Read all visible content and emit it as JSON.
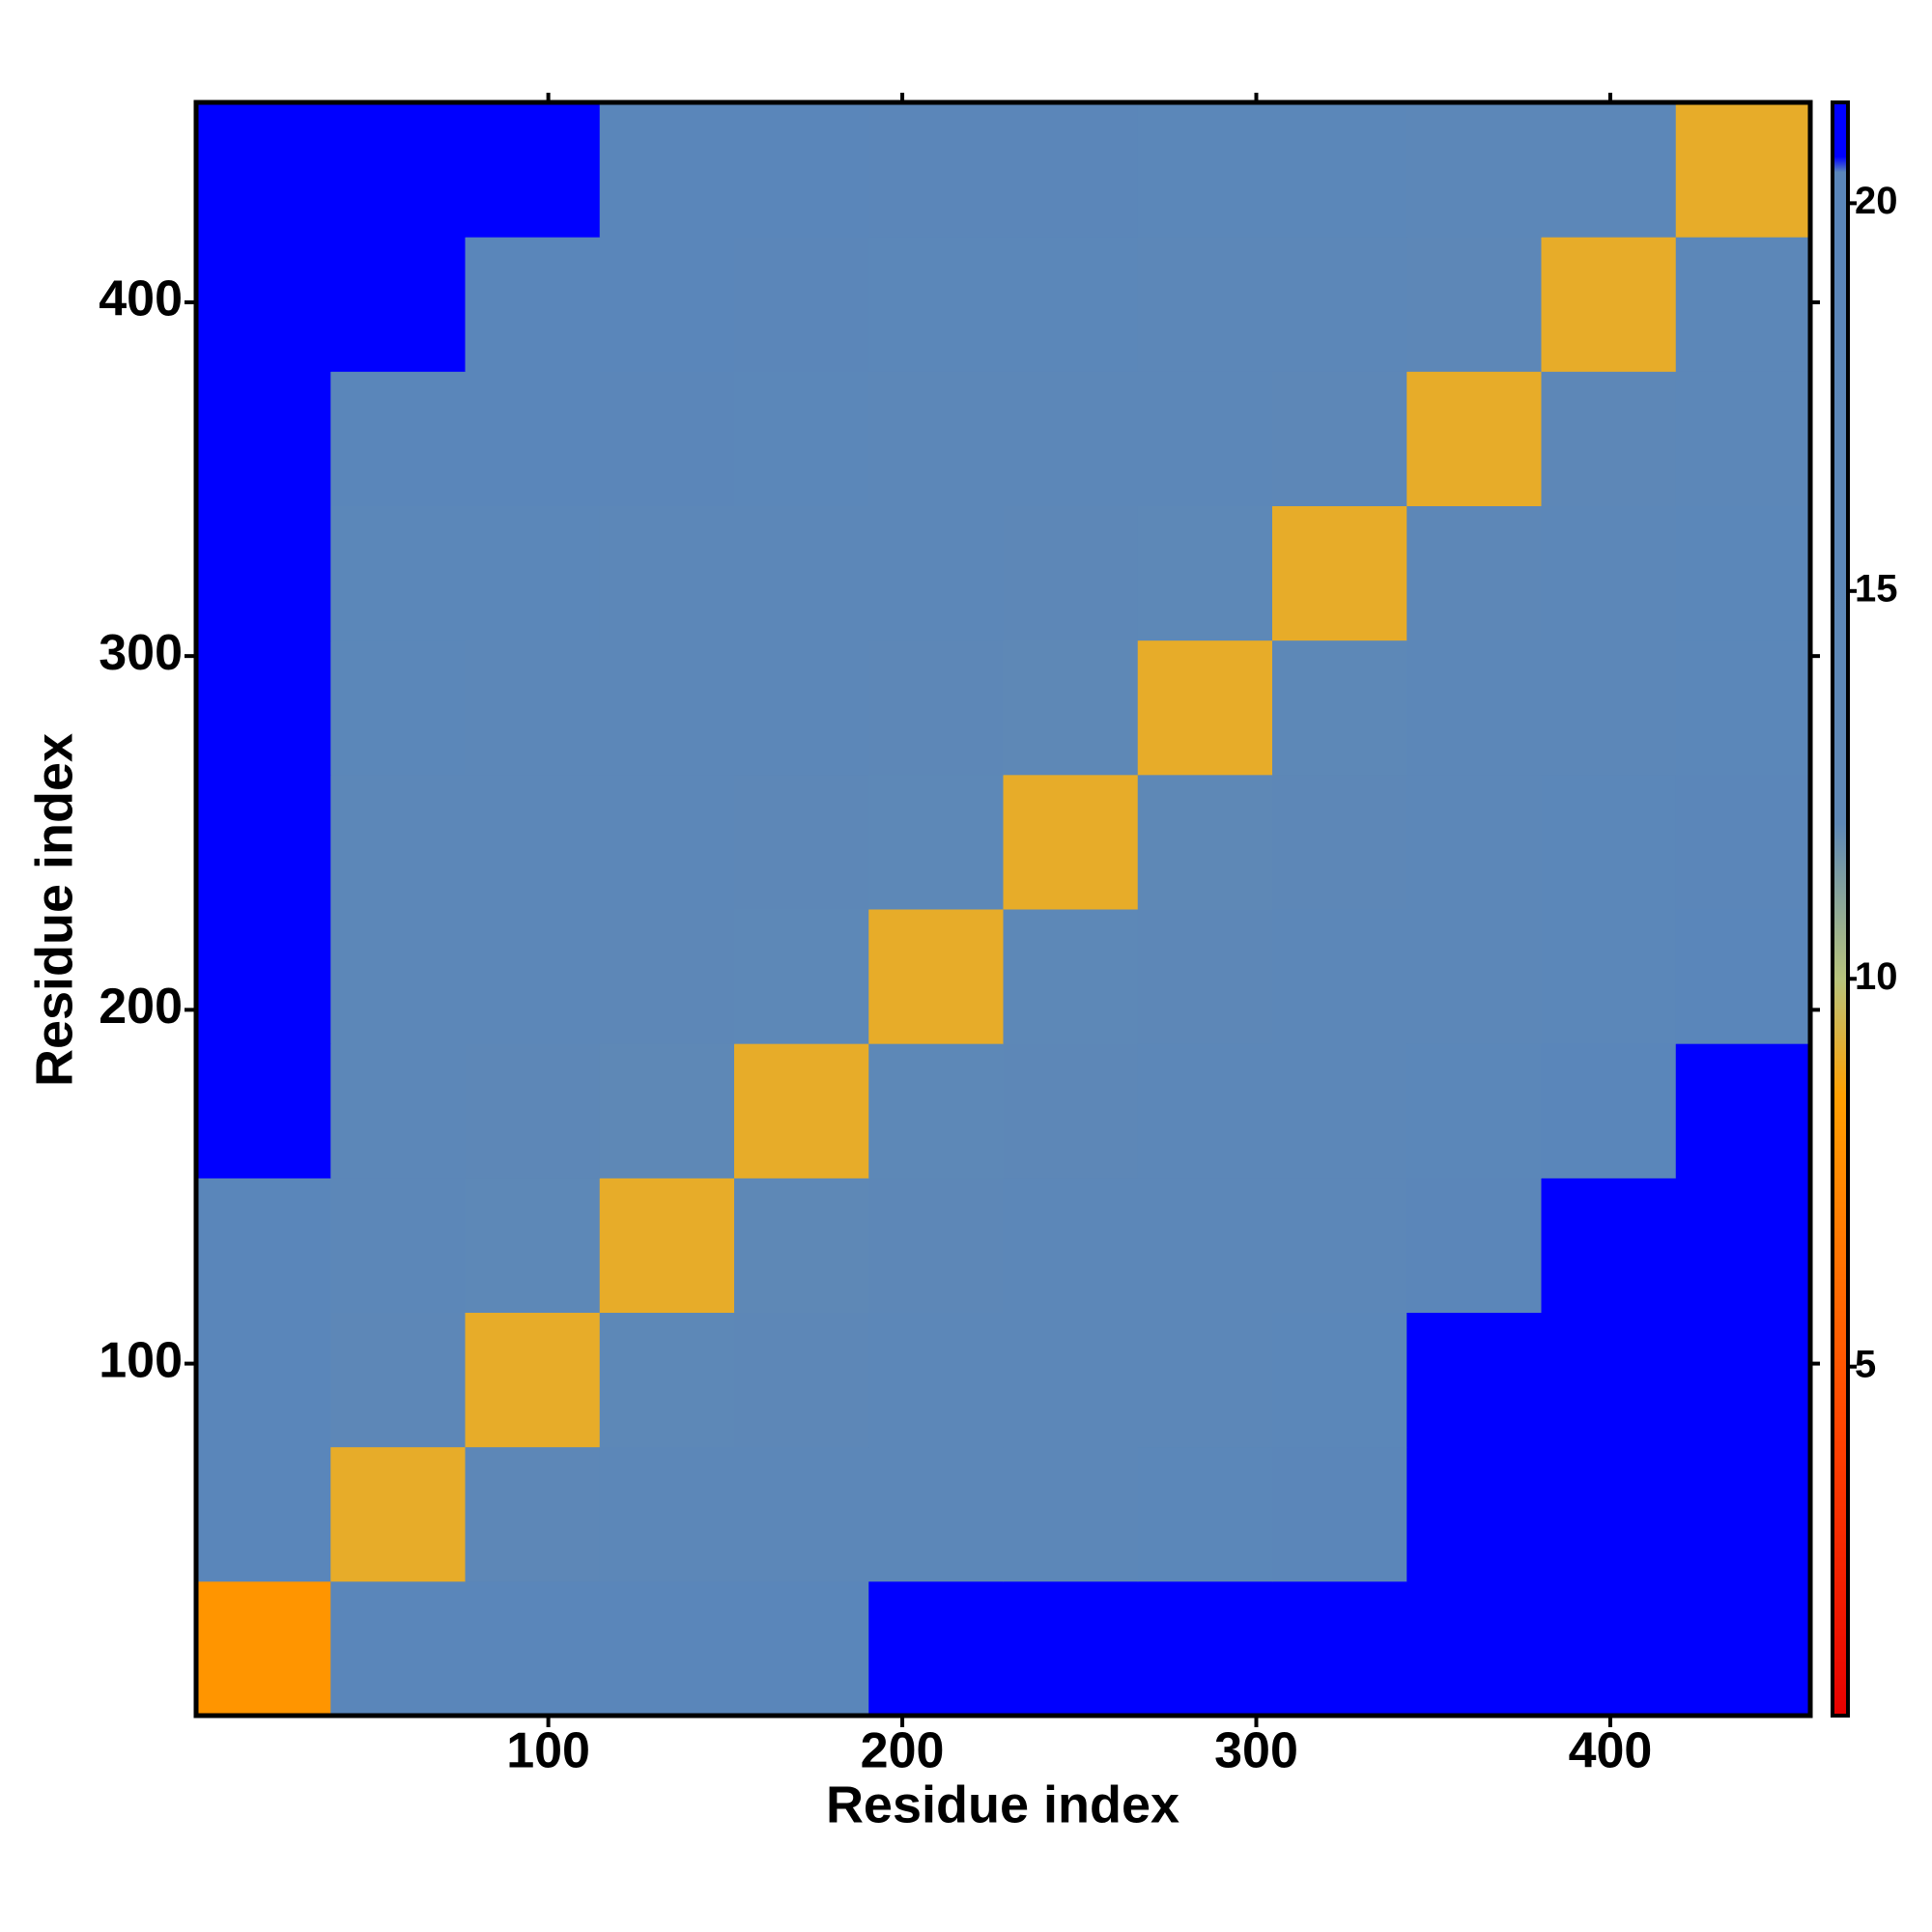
{
  "chart_data": {
    "type": "heatmap",
    "xlabel": "Residue index",
    "ylabel": "Residue index",
    "x_bins": [
      0.5,
      38.5,
      76.5,
      114.5,
      152.5,
      190.5,
      228.5,
      266.5,
      304.5,
      342.5,
      380.5,
      418.5,
      456.5
    ],
    "y_bins": [
      0.5,
      38.5,
      76.5,
      114.5,
      152.5,
      190.5,
      228.5,
      266.5,
      304.5,
      342.5,
      380.5,
      418.5,
      456.5
    ],
    "z": [
      [
        8,
        20,
        20,
        20,
        20,
        21,
        21,
        21,
        21,
        21,
        21,
        21
      ],
      [
        20,
        9,
        15,
        16,
        16,
        17,
        17,
        18,
        19,
        21,
        21,
        21
      ],
      [
        20,
        15,
        9,
        14,
        15,
        16,
        16,
        17,
        18,
        21,
        21,
        21
      ],
      [
        20,
        16,
        14,
        9,
        13,
        15,
        16,
        16,
        17,
        19,
        21,
        21
      ],
      [
        21,
        16,
        15,
        13,
        9,
        14,
        15,
        16,
        17,
        18,
        20,
        21
      ],
      [
        21,
        17,
        16,
        15,
        14,
        9,
        14,
        15,
        16,
        17,
        18,
        20
      ],
      [
        21,
        17,
        16,
        16,
        15,
        14,
        9,
        13,
        15,
        17,
        18,
        19
      ],
      [
        21,
        18,
        17,
        16,
        16,
        15,
        13,
        9,
        14,
        16,
        17,
        18
      ],
      [
        21,
        18,
        18,
        17,
        17,
        16,
        15,
        14,
        9,
        15,
        17,
        18
      ],
      [
        21,
        20,
        20,
        19,
        18,
        17,
        17,
        16,
        15,
        9,
        15,
        17
      ],
      [
        21,
        21,
        20,
        20,
        19,
        18,
        18,
        17,
        17,
        15,
        9,
        16
      ],
      [
        21,
        21,
        21,
        20,
        20,
        19,
        19,
        18,
        18,
        17,
        16,
        9
      ]
    ],
    "xlim": [
      0.5,
      456.5
    ],
    "ylim": [
      0.5,
      456.5
    ],
    "xticks": [
      100,
      200,
      300,
      400
    ],
    "yticks": [
      100,
      200,
      300,
      400
    ],
    "colorbar_lim": [
      0.5,
      21.3
    ],
    "colorbar_ticks": [
      5,
      10,
      15,
      20
    ],
    "colorscale": [
      [
        0.5,
        "#e80000"
      ],
      [
        4,
        "#ff4000"
      ],
      [
        8.5,
        "#ffa000"
      ],
      [
        10,
        "#b8c47c"
      ],
      [
        12,
        "#5e88b6"
      ],
      [
        20.4,
        "#5a86ba"
      ],
      [
        20.6,
        "#0000ff"
      ],
      [
        21.3,
        "#0000ff"
      ]
    ]
  }
}
